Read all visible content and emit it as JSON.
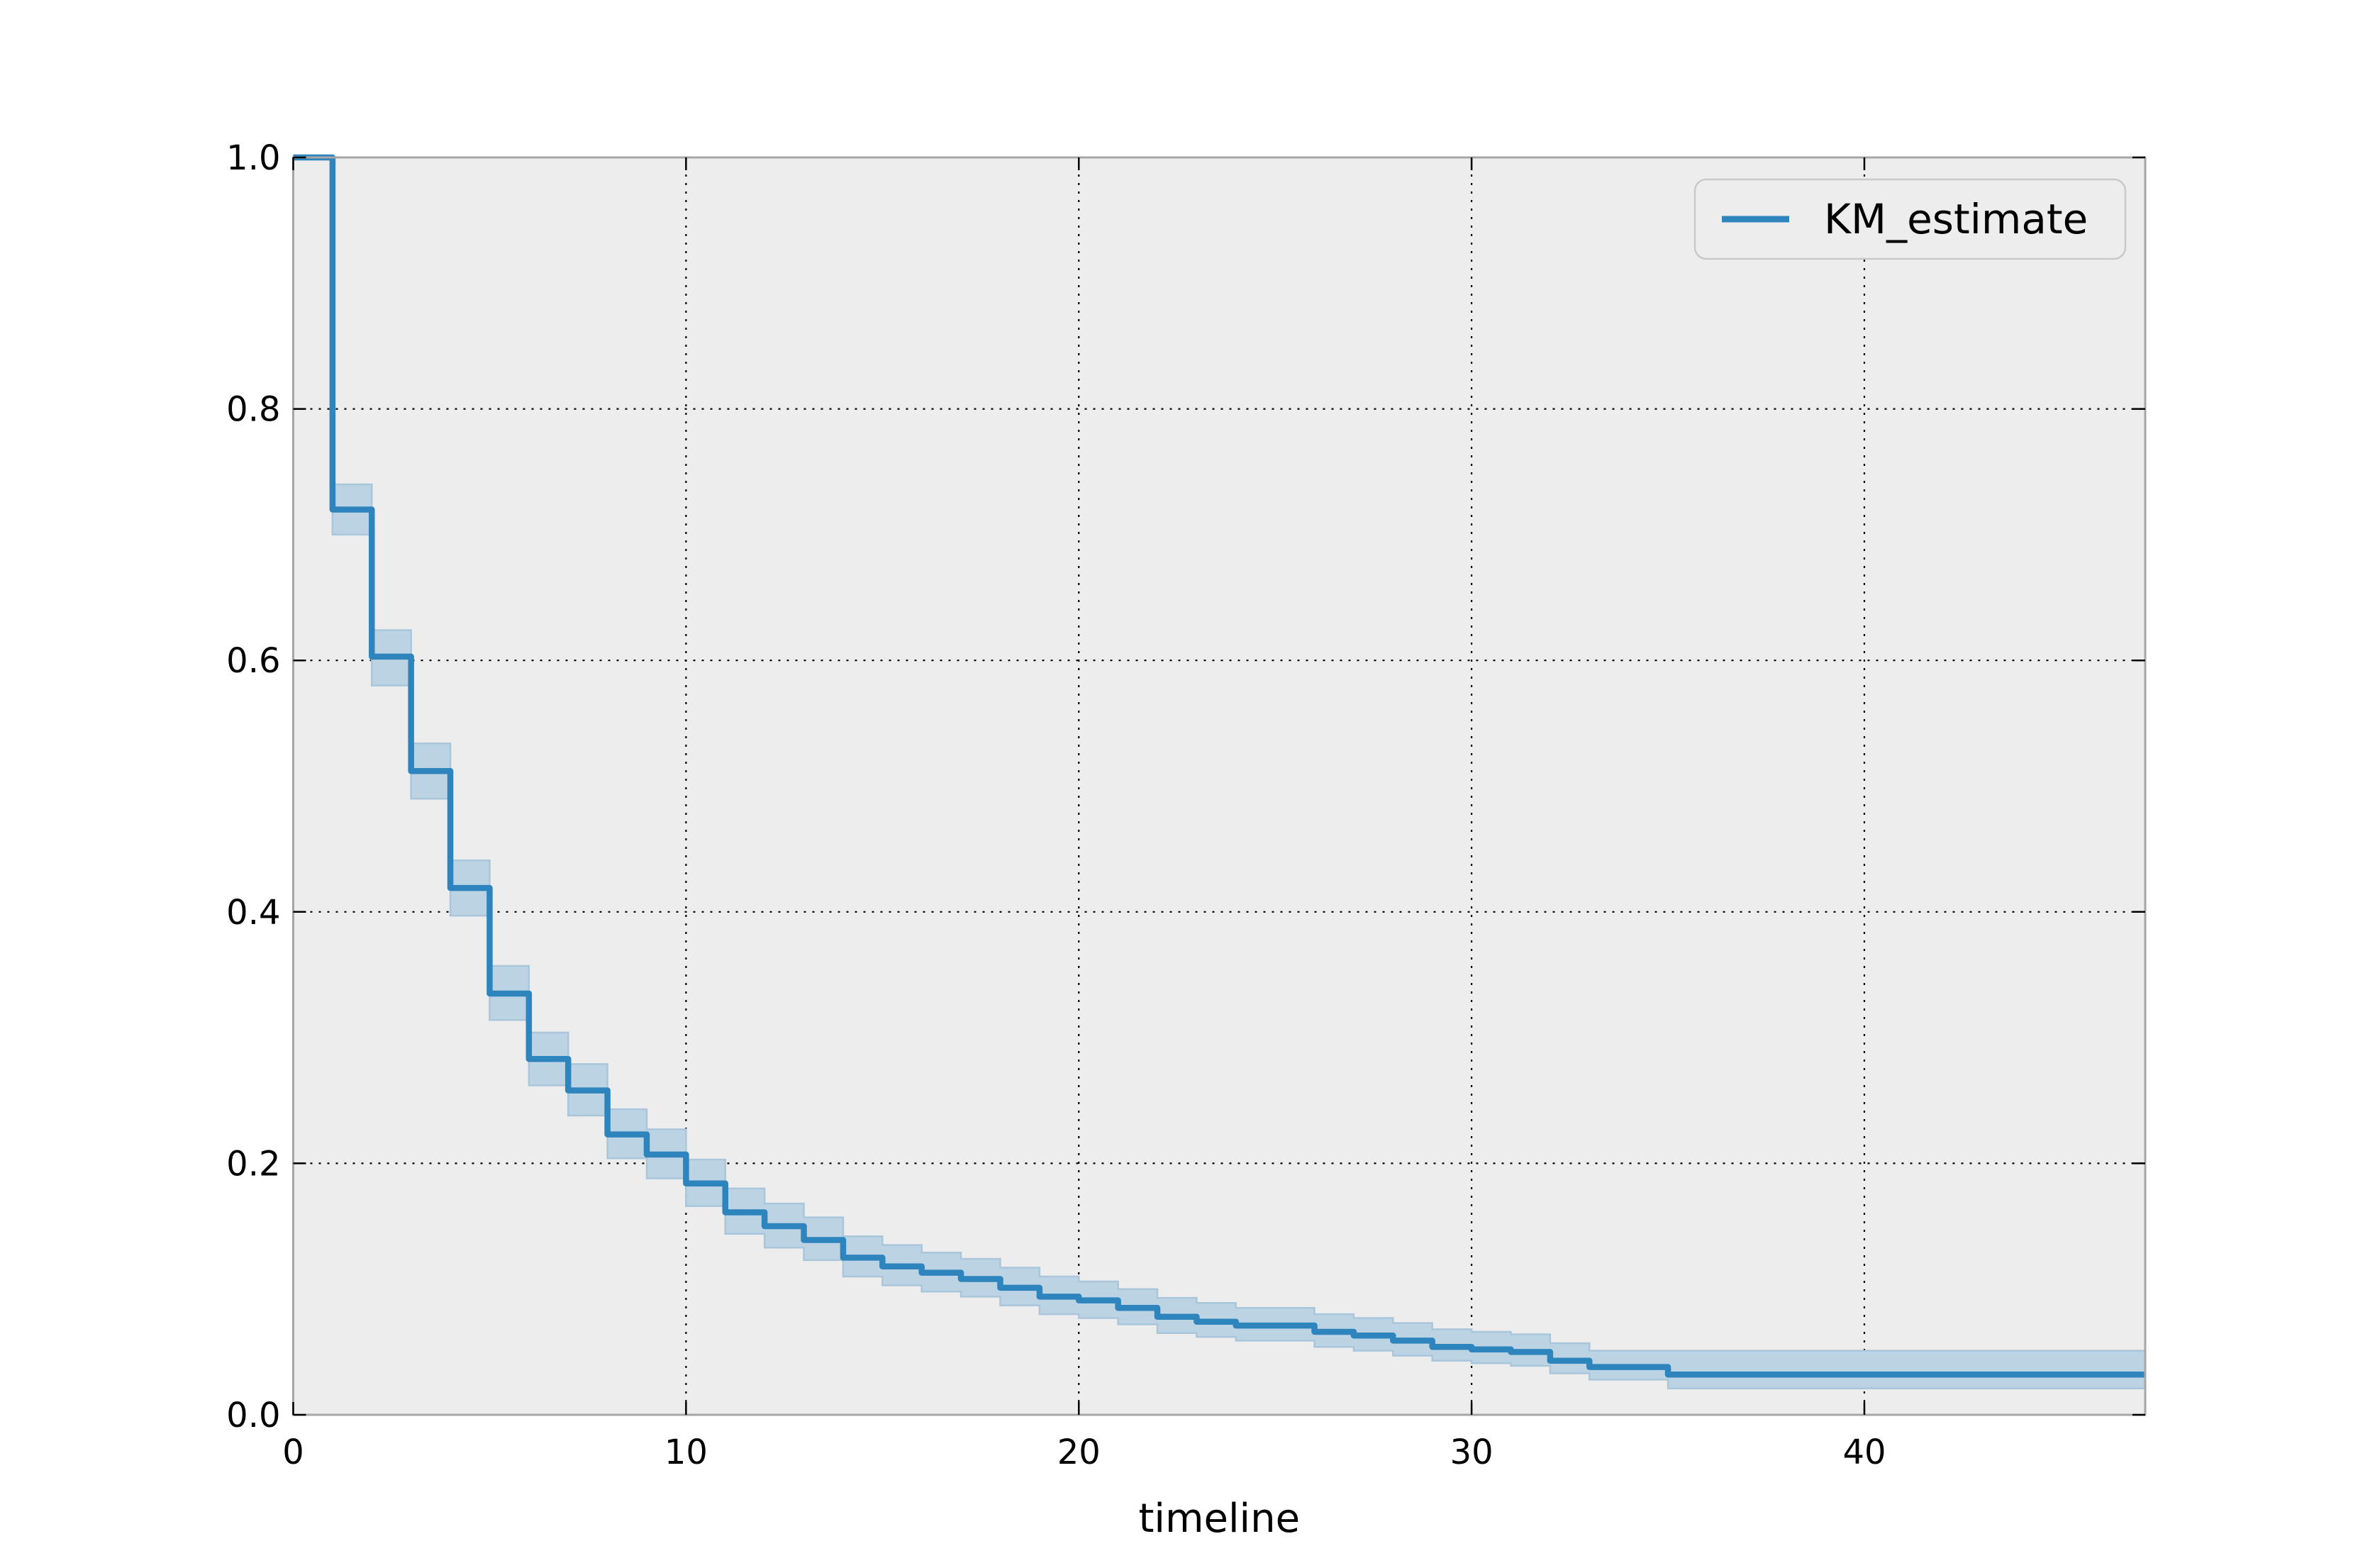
{
  "figure": {
    "background": "#ffffff",
    "plot_background": "#ededed",
    "grid_color": "#000000",
    "spine_color": "#a6a6a6",
    "tick_color": "#000000",
    "text_color": "#000000"
  },
  "legend": {
    "label": "KM_estimate",
    "line_color": "#2e84bd",
    "background": "#ededed",
    "border_color": "#c9c9c9"
  },
  "axes": {
    "xlabel": "timeline",
    "x_ticks": [
      {
        "value": 0,
        "label": "0"
      },
      {
        "value": 10,
        "label": "10"
      },
      {
        "value": 20,
        "label": "20"
      },
      {
        "value": 30,
        "label": "30"
      },
      {
        "value": 40,
        "label": "40"
      }
    ],
    "y_ticks": [
      {
        "value": 0.0,
        "label": "0.0"
      },
      {
        "value": 0.2,
        "label": "0.2"
      },
      {
        "value": 0.4,
        "label": "0.4"
      },
      {
        "value": 0.6,
        "label": "0.6"
      },
      {
        "value": 0.8,
        "label": "0.8"
      },
      {
        "value": 1.0,
        "label": "1.0"
      }
    ]
  },
  "chart_data": {
    "type": "line",
    "subtype": "kaplan-meier-step",
    "title": "",
    "xlabel": "timeline",
    "ylabel": "",
    "legend_entries": [
      "KM_estimate"
    ],
    "legend_position": "upper right",
    "grid": "dotted",
    "xlim": [
      0,
      47.15
    ],
    "ylim": [
      0,
      1.0
    ],
    "line_color": "#2e84bd",
    "ci_fill_color": "#bcd3e3",
    "ci_edge_color": "#a9c6db",
    "km_steps": [
      [
        0,
        1.0
      ],
      [
        1,
        0.72
      ],
      [
        2,
        0.603
      ],
      [
        3,
        0.512
      ],
      [
        4,
        0.419
      ],
      [
        5,
        0.335
      ],
      [
        6,
        0.283
      ],
      [
        7,
        0.258
      ],
      [
        8,
        0.223
      ],
      [
        9,
        0.207
      ],
      [
        10,
        0.184
      ],
      [
        11,
        0.161
      ],
      [
        12,
        0.15
      ],
      [
        13,
        0.139
      ],
      [
        14,
        0.125
      ],
      [
        15,
        0.118
      ],
      [
        16,
        0.113
      ],
      [
        17,
        0.108
      ],
      [
        18,
        0.101
      ],
      [
        19,
        0.094
      ],
      [
        20,
        0.091
      ],
      [
        21,
        0.085
      ],
      [
        22,
        0.078
      ],
      [
        23,
        0.074
      ],
      [
        24,
        0.071
      ],
      [
        26,
        0.066
      ],
      [
        27,
        0.063
      ],
      [
        28,
        0.059
      ],
      [
        29,
        0.054
      ],
      [
        30,
        0.052
      ],
      [
        31,
        0.05
      ],
      [
        32,
        0.043
      ],
      [
        33,
        0.038
      ],
      [
        35,
        0.032
      ]
    ],
    "ci_upper": [
      [
        1,
        0.74
      ],
      [
        2,
        0.624
      ],
      [
        3,
        0.534
      ],
      [
        4,
        0.441
      ],
      [
        5,
        0.357
      ],
      [
        6,
        0.304
      ],
      [
        7,
        0.279
      ],
      [
        8,
        0.243
      ],
      [
        9,
        0.227
      ],
      [
        10,
        0.203
      ],
      [
        11,
        0.18
      ],
      [
        12,
        0.168
      ],
      [
        13,
        0.157
      ],
      [
        14,
        0.142
      ],
      [
        15,
        0.135
      ],
      [
        16,
        0.129
      ],
      [
        17,
        0.124
      ],
      [
        18,
        0.117
      ],
      [
        19,
        0.11
      ],
      [
        20,
        0.106
      ],
      [
        21,
        0.1
      ],
      [
        22,
        0.093
      ],
      [
        23,
        0.089
      ],
      [
        24,
        0.085
      ],
      [
        26,
        0.08
      ],
      [
        27,
        0.077
      ],
      [
        28,
        0.073
      ],
      [
        29,
        0.068
      ],
      [
        30,
        0.066
      ],
      [
        31,
        0.064
      ],
      [
        32,
        0.057
      ],
      [
        33,
        0.051
      ],
      [
        35,
        0.051
      ]
    ],
    "ci_lower": [
      [
        1,
        0.7
      ],
      [
        2,
        0.58
      ],
      [
        3,
        0.49
      ],
      [
        4,
        0.397
      ],
      [
        5,
        0.314
      ],
      [
        6,
        0.262
      ],
      [
        7,
        0.238
      ],
      [
        8,
        0.204
      ],
      [
        9,
        0.188
      ],
      [
        10,
        0.166
      ],
      [
        11,
        0.144
      ],
      [
        12,
        0.133
      ],
      [
        13,
        0.123
      ],
      [
        14,
        0.11
      ],
      [
        15,
        0.103
      ],
      [
        16,
        0.098
      ],
      [
        17,
        0.094
      ],
      [
        18,
        0.087
      ],
      [
        19,
        0.08
      ],
      [
        20,
        0.077
      ],
      [
        21,
        0.072
      ],
      [
        22,
        0.065
      ],
      [
        23,
        0.062
      ],
      [
        24,
        0.059
      ],
      [
        26,
        0.054
      ],
      [
        27,
        0.051
      ],
      [
        28,
        0.047
      ],
      [
        29,
        0.043
      ],
      [
        30,
        0.041
      ],
      [
        31,
        0.039
      ],
      [
        32,
        0.033
      ],
      [
        33,
        0.028
      ],
      [
        35,
        0.021
      ]
    ]
  }
}
